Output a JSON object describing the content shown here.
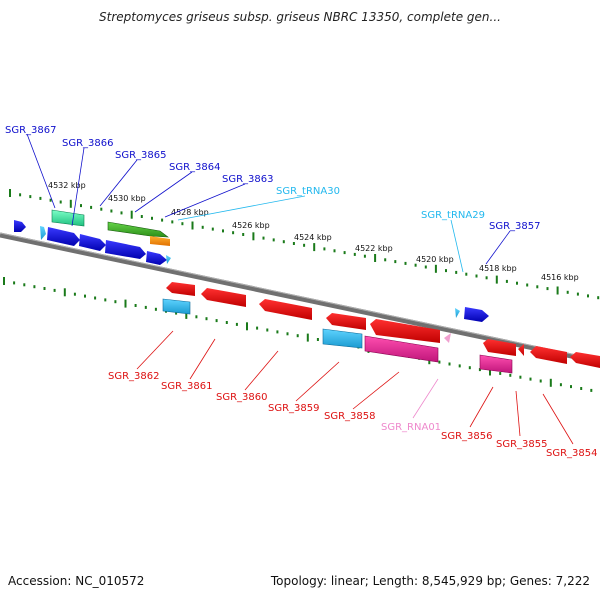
{
  "title": "Streptomyces griseus subsp. griseus NBRC 13350, complete gen...",
  "footer": {
    "accession": "Accession: NC_010572",
    "summary": "Topology: linear; Length: 8,545,929 bp; Genes: 7,222"
  },
  "colors": {
    "forward_gene": "#1010dd",
    "reverse_gene": "#ee1111",
    "trna": "#22bbee",
    "ncrna": "#ee88cc",
    "backbone": "#808080",
    "tick": "#1a7a1a"
  },
  "scale_labels": [
    "4532 kbp",
    "4530 kbp",
    "4528 kbp",
    "4526 kbp",
    "4524 kbp",
    "4522 kbp",
    "4520 kbp",
    "4518 kbp",
    "4516 kbp"
  ],
  "gene_labels": {
    "forward": [
      "SGR_3867",
      "SGR_3866",
      "SGR_3865",
      "SGR_3864",
      "SGR_3863",
      "SGR_tRNA30",
      "SGR_tRNA29",
      "SGR_3857"
    ],
    "reverse": [
      "SGR_3862",
      "SGR_3861",
      "SGR_3860",
      "SGR_3859",
      "SGR_3858",
      "SGR_RNA01",
      "SGR_3856",
      "SGR_3855",
      "SGR_3854"
    ]
  }
}
